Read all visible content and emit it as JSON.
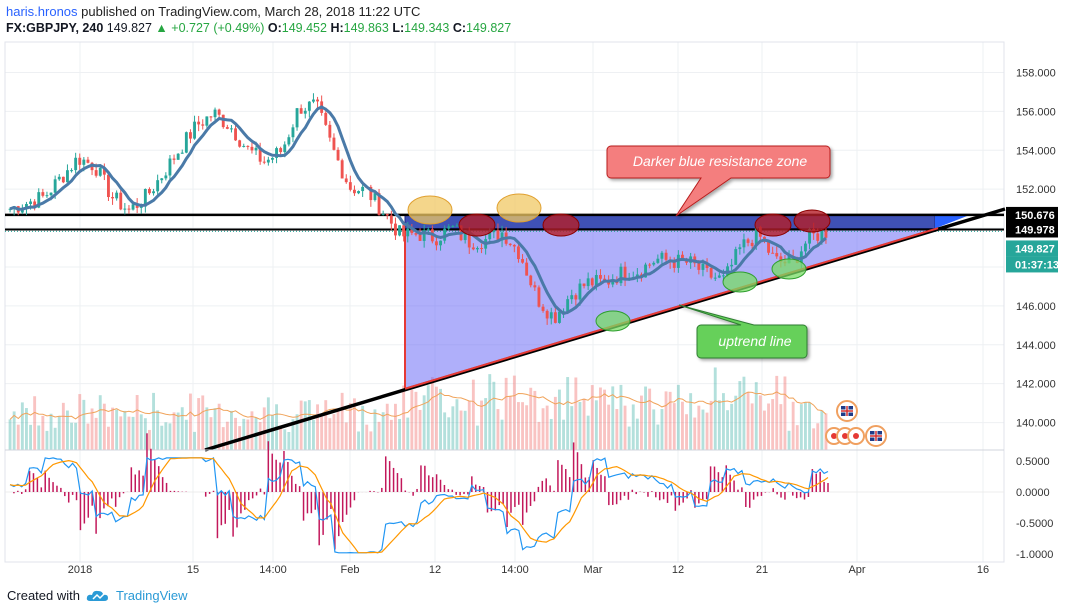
{
  "header": {
    "author": "haris.hronos",
    "published": "published on TradingView.com, March 28, 2018 11:22 UTC",
    "symbol": "FX:GBPJPY, 240",
    "last": "149.827",
    "change": "+0.727 (+0.49%)",
    "o_label": "O:",
    "o": "149.452",
    "h_label": "H:",
    "h": "149.863",
    "l_label": "L:",
    "l": "149.343",
    "c_label": "C:",
    "c": "149.827"
  },
  "footer": {
    "created_with": "Created with",
    "brand": "TradingView"
  },
  "annotations": {
    "resistance": "Darker blue resistance zone",
    "uptrend": "uptrend line"
  },
  "badges": {
    "resistance_top": "150.676",
    "resistance_bottom": "149.978",
    "last_price": "149.827",
    "countdown": "01:37:13"
  },
  "chart_data": [
    {
      "type": "candlestick",
      "symbol": "FX:GBPJPY",
      "interval": "240",
      "x_ticks": [
        "2018",
        "15",
        "14:00",
        "Feb",
        "12",
        "14:00",
        "Mar",
        "12",
        "21",
        "Apr",
        "16"
      ],
      "y_ticks": [
        "158.000",
        "156.000",
        "154.000",
        "152.000",
        "150.000",
        "148.000",
        "146.000",
        "144.000",
        "142.000",
        "140.000"
      ],
      "ylim": [
        139.5,
        159.2
      ],
      "close_path": [
        151.0,
        151.3,
        151.6,
        152.6,
        153.6,
        153.2,
        151.6,
        150.9,
        151.6,
        152.8,
        154.1,
        155.3,
        155.9,
        155.2,
        154.0,
        153.4,
        154.0,
        156.2,
        156.3,
        154.0,
        152.1,
        151.9,
        150.8,
        149.6,
        149.7,
        149.5,
        150.0,
        149.3,
        149.4,
        149.8,
        148.7,
        146.4,
        145.4,
        146.6,
        147.2,
        147.2,
        147.7,
        147.8,
        148.4,
        148.3,
        148.2,
        147.6,
        147.3,
        149.0,
        149.7,
        148.3,
        148.2,
        149.5,
        149.8
      ],
      "volume": "relative bars, no scale",
      "series": [
        {
          "name": "candles",
          "color_up": "#26a69a",
          "color_down": "#ef5350"
        },
        {
          "name": "moving average",
          "color": "#4a7aa8"
        }
      ],
      "resistance_zone": [
        149.978,
        150.676
      ],
      "resistance_touches": 6,
      "support_touches": 4
    },
    {
      "type": "line",
      "name": "MACD",
      "y_ticks": [
        "0.5000",
        "0.0000",
        "-0.5000",
        "-1.0000"
      ],
      "ylim": [
        -1.0,
        0.6
      ],
      "series": [
        {
          "name": "macd",
          "color": "#2196f3"
        },
        {
          "name": "signal",
          "color": "#ff9800"
        },
        {
          "name": "histogram",
          "color": "#c2185b"
        }
      ]
    }
  ]
}
